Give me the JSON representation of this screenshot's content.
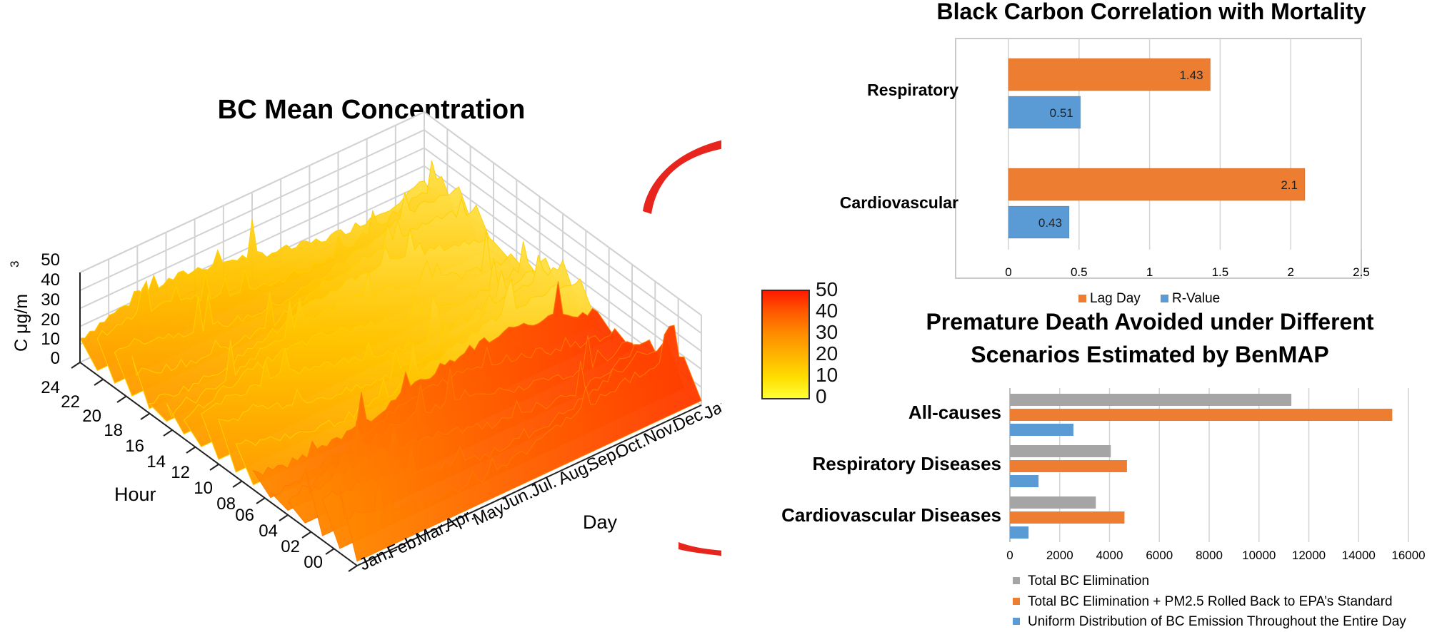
{
  "surface": {
    "title": "BC Mean Concentration",
    "zlabel": "C  μg/m",
    "zlabel_sup": "3",
    "z_ticks": [
      "50",
      "40",
      "30",
      "20",
      "10",
      "0"
    ],
    "hour_label": "Hour",
    "hour_ticks": [
      "24",
      "22",
      "20",
      "18",
      "16",
      "14",
      "12",
      "10",
      "08",
      "06",
      "04",
      "02",
      "00"
    ],
    "day_label": "Day",
    "month_ticks": [
      "Jan.",
      "Feb.",
      "Mar.",
      "Apr.",
      "May",
      "Jun.",
      "Jul.",
      "Aug.",
      "Sep.",
      "Oct.",
      "Nov.",
      "Dec.",
      "Jan."
    ]
  },
  "colorbar": {
    "ticks": [
      "50",
      "40",
      "30",
      "20",
      "10",
      "0"
    ],
    "colors": [
      "#ff1a00",
      "#ff5a00",
      "#ff8c00",
      "#ffb400",
      "#ffdc00",
      "#ffff33"
    ]
  },
  "arrow_color": "#e8251c",
  "chart_data": [
    {
      "type": "surface",
      "title": "BC Mean Concentration",
      "xlabel": "Day",
      "ylabel": "Hour",
      "zlabel": "C  μg/m3",
      "zlim": [
        0,
        50
      ],
      "x_ticks": [
        "Jan.",
        "Feb.",
        "Mar.",
        "Apr.",
        "May",
        "Jun.",
        "Jul.",
        "Aug.",
        "Sep.",
        "Oct.",
        "Nov.",
        "Dec.",
        "Jan."
      ],
      "y_ticks": [
        "00",
        "02",
        "04",
        "06",
        "08",
        "10",
        "12",
        "14",
        "16",
        "18",
        "20",
        "22",
        "24"
      ]
    },
    {
      "type": "bar",
      "orientation": "horizontal",
      "title": "Black Carbon Correlation with Mortality",
      "categories": [
        "Respiratory",
        "Cardiovascular"
      ],
      "series": [
        {
          "name": "Lag Day",
          "color": "#ed7d31",
          "values": [
            1.43,
            2.1
          ],
          "labels": [
            "1.43",
            "2.1"
          ]
        },
        {
          "name": "R-Value",
          "color": "#5b9bd5",
          "values": [
            0.51,
            0.43
          ],
          "labels": [
            "0.51",
            "0.43"
          ]
        }
      ],
      "xlim": [
        0,
        2.5
      ],
      "x_ticks": [
        "0",
        "0.5",
        "1",
        "1.5",
        "2",
        "2.5"
      ],
      "legend": "bottom"
    },
    {
      "type": "bar",
      "orientation": "horizontal",
      "title_lines": [
        "Premature Death Avoided under Different",
        "Scenarios Estimated by BenMAP"
      ],
      "categories": [
        "All-causes",
        "Respiratory Diseases",
        "Cardiovascular Diseases"
      ],
      "series": [
        {
          "name": "Total BC Elimination",
          "color": "#a5a5a5",
          "values": [
            11300,
            4050,
            3450
          ]
        },
        {
          "name": "Total BC Elimination + PM2.5 Rolled Back to EPA’s Standard",
          "color": "#ed7d31",
          "values": [
            15350,
            4700,
            4600
          ]
        },
        {
          "name": "Uniform Distribution of BC Emission Throughout the Entire Day",
          "color": "#5b9bd5",
          "values": [
            2550,
            1150,
            750
          ]
        }
      ],
      "xlim": [
        0,
        16000
      ],
      "x_ticks": [
        "0",
        "2000",
        "4000",
        "6000",
        "8000",
        "10000",
        "12000",
        "14000",
        "16000"
      ],
      "legend": "bottom"
    }
  ]
}
